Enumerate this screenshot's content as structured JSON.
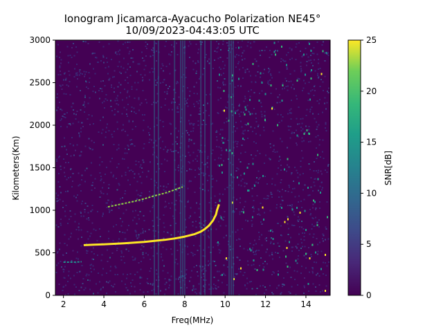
{
  "chart_data": {
    "type": "heatmap",
    "title": "Ionogram Jicamarca-Ayacucho Polarization NE45°",
    "subtitle": "10/09/2023-04:43:05 UTC",
    "xlabel": "Freq(MHz)",
    "ylabel": "Kilometers(Km)",
    "xlim": [
      1.6,
      15.2
    ],
    "ylim": [
      0,
      3000
    ],
    "xticks": [
      2,
      4,
      6,
      8,
      10,
      12,
      14
    ],
    "yticks": [
      0,
      500,
      1000,
      1500,
      2000,
      2500,
      3000
    ],
    "colorbar": {
      "label": "SNR[dB]",
      "range": [
        0,
        25
      ],
      "ticks": [
        0,
        5,
        10,
        15,
        20,
        25
      ],
      "colormap": "viridis"
    },
    "colors": {
      "background": "#440154",
      "noise": "#3b2a78",
      "trace_strong": "#fde725",
      "trace_weak": "#8fd744",
      "interference": "#2a788e"
    },
    "traces": [
      {
        "name": "",
        "snr_db": 25,
        "points": [
          [
            3.0,
            590
          ],
          [
            3.5,
            595
          ],
          [
            4.0,
            600
          ],
          [
            4.5,
            606
          ],
          [
            5.0,
            612
          ],
          [
            5.5,
            620
          ],
          [
            6.0,
            628
          ],
          [
            6.5,
            640
          ],
          [
            7.0,
            652
          ],
          [
            7.5,
            668
          ],
          [
            8.0,
            690
          ],
          [
            8.5,
            720
          ],
          [
            8.8,
            750
          ],
          [
            9.0,
            780
          ],
          [
            9.2,
            820
          ],
          [
            9.4,
            880
          ],
          [
            9.55,
            950
          ],
          [
            9.6,
            1000
          ],
          [
            9.7,
            1070
          ]
        ]
      },
      {
        "name": "",
        "snr_db": 14,
        "points": [
          [
            4.2,
            1040
          ],
          [
            4.8,
            1070
          ],
          [
            5.5,
            1105
          ],
          [
            6.0,
            1135
          ],
          [
            6.5,
            1170
          ],
          [
            7.0,
            1200
          ],
          [
            7.5,
            1240
          ],
          [
            7.9,
            1275
          ]
        ]
      },
      {
        "name": "",
        "snr_db": 8,
        "points": [
          [
            2.0,
            390
          ],
          [
            2.5,
            390
          ],
          [
            2.9,
            395
          ]
        ]
      }
    ],
    "interference_bands_mhz": [
      6.5,
      6.7,
      7.5,
      7.8,
      7.9,
      8.0,
      8.8,
      9.0,
      9.3,
      10.2,
      10.3,
      10.4
    ]
  }
}
